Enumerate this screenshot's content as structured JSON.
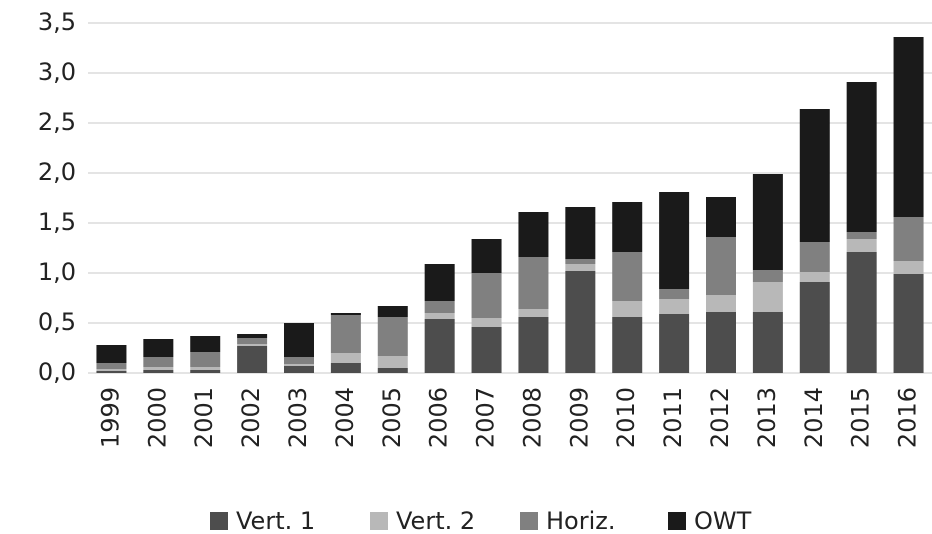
{
  "chart_data": {
    "type": "stacked_bar",
    "categories": [
      "1999",
      "2000",
      "2001",
      "2002",
      "2003",
      "2004",
      "2005",
      "2006",
      "2007",
      "2008",
      "2009",
      "2010",
      "2011",
      "2012",
      "2013",
      "2014",
      "2015",
      "2016"
    ],
    "series": [
      {
        "name": "Vert. 1",
        "color": "#4d4d4d",
        "values": [
          0.02,
          0.03,
          0.03,
          0.27,
          0.07,
          0.1,
          0.05,
          0.54,
          0.46,
          0.56,
          1.02,
          0.56,
          0.59,
          0.61,
          0.61,
          0.91,
          1.21,
          0.99
        ]
      },
      {
        "name": "Vert. 2",
        "color": "#b8b8b8",
        "values": [
          0.02,
          0.03,
          0.03,
          0.02,
          0.02,
          0.1,
          0.12,
          0.06,
          0.09,
          0.08,
          0.07,
          0.16,
          0.15,
          0.17,
          0.3,
          0.1,
          0.13,
          0.13
        ]
      },
      {
        "name": "Horiz.",
        "color": "#808080",
        "values": [
          0.06,
          0.1,
          0.15,
          0.06,
          0.07,
          0.38,
          0.39,
          0.12,
          0.45,
          0.52,
          0.05,
          0.49,
          0.1,
          0.58,
          0.12,
          0.3,
          0.07,
          0.44
        ]
      },
      {
        "name": "OWT",
        "color": "#1a1a1a",
        "values": [
          0.18,
          0.18,
          0.16,
          0.04,
          0.34,
          0.02,
          0.11,
          0.37,
          0.34,
          0.45,
          0.52,
          0.5,
          0.97,
          0.4,
          0.96,
          1.33,
          1.5,
          1.8
        ]
      }
    ],
    "ylim": [
      0,
      3.5
    ],
    "yticks": [
      {
        "value": 0,
        "label": "0,0"
      },
      {
        "value": 0.5,
        "label": "0,5"
      },
      {
        "value": 1,
        "label": "1,0"
      },
      {
        "value": 1.5,
        "label": "1,5"
      },
      {
        "value": 2,
        "label": "2,0"
      },
      {
        "value": 2.5,
        "label": "2,5"
      },
      {
        "value": 3,
        "label": "3,0"
      },
      {
        "value": 3.5,
        "label": "3,5"
      }
    ],
    "grid": true,
    "legend": "bottom"
  }
}
